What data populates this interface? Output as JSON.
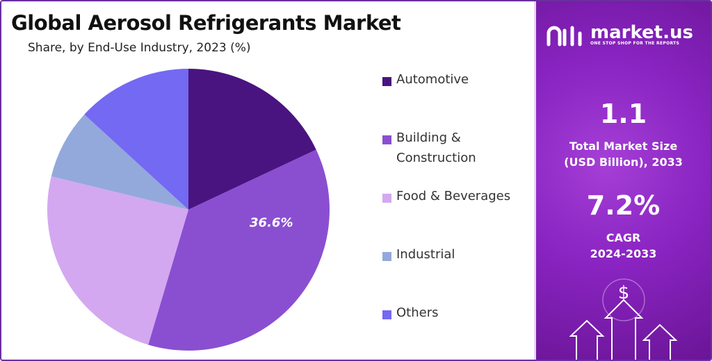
{
  "header": {
    "title": "Global Aerosol Refrigerants Market",
    "subtitle": "Share, by End-Use Industry, 2023 (%)"
  },
  "chart_data": {
    "type": "pie",
    "title": "Global Aerosol Refrigerants Market",
    "subtitle": "Share, by End-Use Industry, 2023 (%)",
    "categories": [
      "Automotive",
      "Building & Construction",
      "Food & Beverages",
      "Industrial",
      "Others"
    ],
    "values": [
      18.0,
      36.6,
      24.2,
      8.0,
      13.2
    ],
    "colors": [
      "#4a1480",
      "#8a4fd0",
      "#d3a8f0",
      "#93a9dc",
      "#7469f2"
    ],
    "data_labels": [
      {
        "category": "Building & Construction",
        "text": "36.6%"
      }
    ],
    "start_angle_deg": 0,
    "direction": "clockwise",
    "legend": {
      "placement": "right",
      "items": [
        {
          "line1": "Automotive",
          "line2": ""
        },
        {
          "line1": "Building &",
          "line2": "Construction"
        },
        {
          "line1": "Food & Beverages",
          "line2": ""
        },
        {
          "line1": "Industrial",
          "line2": ""
        },
        {
          "line1": "Others",
          "line2": ""
        }
      ]
    }
  },
  "sidebar": {
    "brand_name": "market.us",
    "brand_tagline": "ONE STOP SHOP FOR THE REPORTS",
    "logo_icon": "market-us-logo-icon",
    "stats": [
      {
        "value": "1.1",
        "label_line1": "Total Market Size",
        "label_line2": "(USD Billion), 2033"
      },
      {
        "value": "7.2%",
        "label_line1": "CAGR",
        "label_line2": "2024-2033"
      }
    ],
    "decoration_icon": "dollar-growth-arrows-icon",
    "dollar_glyph": "$",
    "accent_color": "#8a24c2"
  }
}
